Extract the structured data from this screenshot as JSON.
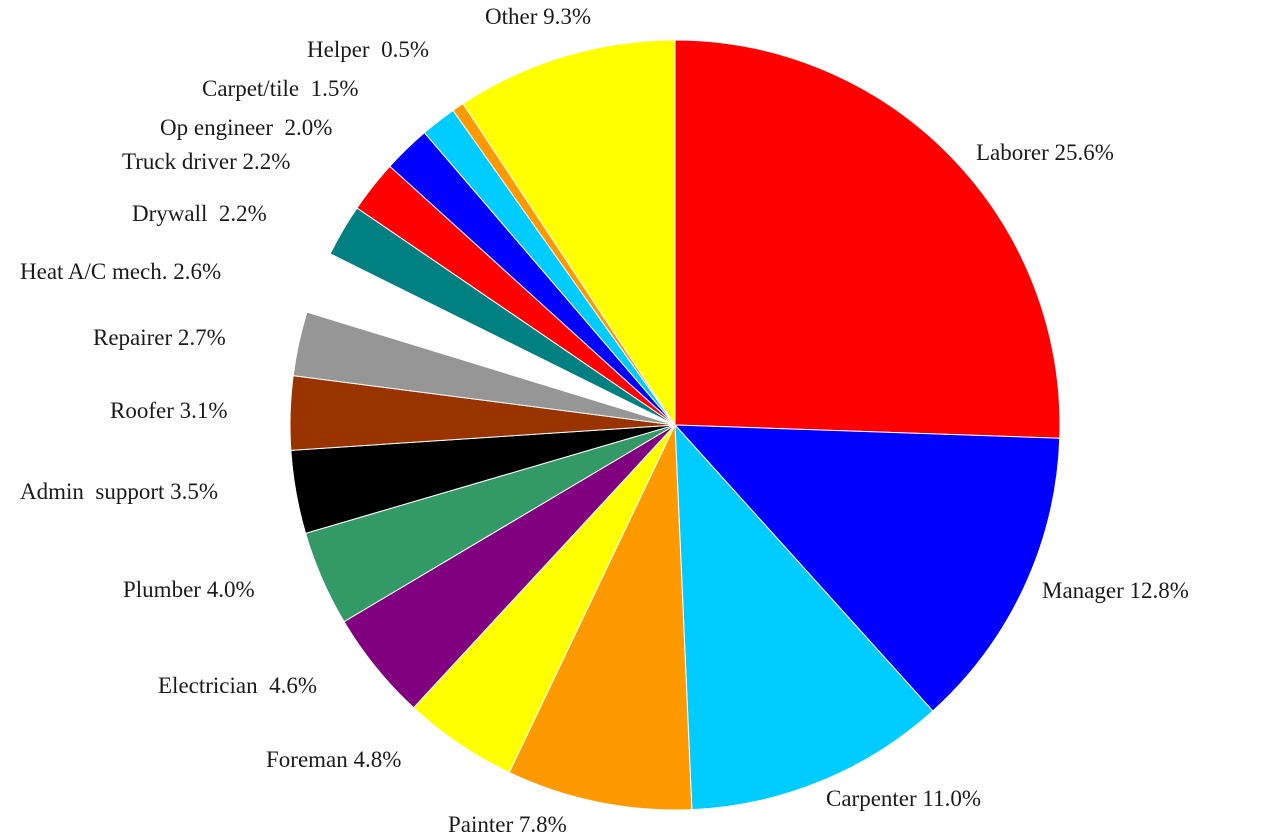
{
  "chart_data": {
    "type": "pie",
    "title": "",
    "start_angle_deg": 0,
    "direction": "clockwise",
    "slices": [
      {
        "label": "Laborer 25.6%",
        "value": 25.6,
        "color": "#ff0000"
      },
      {
        "label": "Manager 12.8%",
        "value": 12.8,
        "color": "#0000ff"
      },
      {
        "label": "Carpenter 11.0%",
        "value": 11.0,
        "color": "#00ccff"
      },
      {
        "label": "Painter 7.8%",
        "value": 7.8,
        "color": "#ff9900"
      },
      {
        "label": "Foreman 4.8%",
        "value": 4.8,
        "color": "#ffff00"
      },
      {
        "label": "Electrician  4.6%",
        "value": 4.6,
        "color": "#800080"
      },
      {
        "label": "Plumber 4.0%",
        "value": 4.0,
        "color": "#339966"
      },
      {
        "label": "Admin  support 3.5%",
        "value": 3.5,
        "color": "#000000"
      },
      {
        "label": "Roofer 3.1%",
        "value": 3.1,
        "color": "#993300"
      },
      {
        "label": "Repairer 2.7%",
        "value": 2.7,
        "color": "#969696"
      },
      {
        "label": "Heat A/C mech. 2.6%",
        "value": 2.6,
        "color": "#ffffff"
      },
      {
        "label": "Drywall  2.2%",
        "value": 2.2,
        "color": "#008080"
      },
      {
        "label": "Truck driver 2.2%",
        "value": 2.2,
        "color": "#ff0000"
      },
      {
        "label": "Op engineer  2.0%",
        "value": 2.0,
        "color": "#0000ff"
      },
      {
        "label": "Carpet/tile  1.5%",
        "value": 1.5,
        "color": "#00ccff"
      },
      {
        "label": "Helper  0.5%",
        "value": 0.5,
        "color": "#ff9900"
      },
      {
        "label": "Other 9.3%",
        "value": 9.3,
        "color": "#ffff00"
      }
    ]
  }
}
